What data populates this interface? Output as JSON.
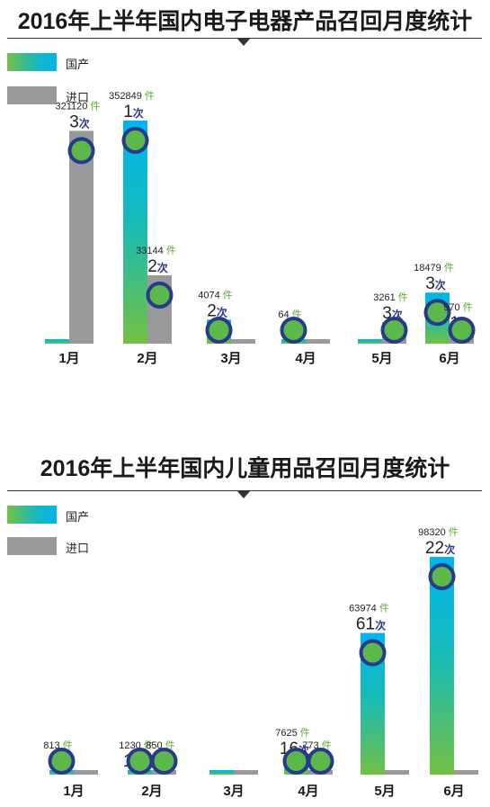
{
  "legend": {
    "domestic": "国产",
    "imported": "进口"
  },
  "colors": {
    "imported": "#97999b",
    "count_label": "#2b3a8e",
    "unit": "#5aab2e",
    "circle_ring": "#283a8c",
    "circle_fill": "#5cb84a"
  },
  "units": {
    "item": "件",
    "times": "次"
  },
  "chart_data": [
    {
      "type": "bar",
      "title": "2016年上半年国内电子电器产品召回月度统计",
      "categories": [
        "1月",
        "2月",
        "3月",
        "4月",
        "5月",
        "6月"
      ],
      "series": [
        {
          "name": "国产",
          "values": [
            0,
            352849,
            4074,
            64,
            0,
            18479
          ],
          "value_labels": [
            "",
            "352849",
            "4074",
            "64",
            "",
            "18479"
          ],
          "count_labels": [
            "",
            "1",
            "2",
            "2",
            "",
            "3"
          ]
        },
        {
          "name": "进口",
          "values": [
            321120,
            33144,
            0,
            0,
            3261,
            970
          ],
          "value_labels": [
            "321120",
            "33144",
            "",
            "",
            "3261",
            "970"
          ],
          "count_labels": [
            "3",
            "2",
            "",
            "",
            "3",
            "1"
          ]
        }
      ]
    },
    {
      "type": "bar",
      "title": "2016年上半年国内儿童用品召回月度统计",
      "categories": [
        "1月",
        "2月",
        "3月",
        "4月",
        "5月",
        "6月"
      ],
      "series": [
        {
          "name": "国产",
          "values": [
            813,
            1230,
            0,
            7625,
            63974,
            98320
          ],
          "value_labels": [
            "813",
            "1230",
            "",
            "7625",
            "63974",
            "98320"
          ],
          "count_labels": [
            "3",
            "15",
            "",
            "16",
            "61",
            "22"
          ]
        },
        {
          "name": "进口",
          "values": [
            0,
            850,
            0,
            773,
            0,
            0
          ],
          "value_labels": [
            "",
            "850",
            "",
            "773",
            "",
            ""
          ],
          "count_labels": [
            "",
            "1",
            "",
            "1",
            "",
            ""
          ]
        }
      ]
    }
  ]
}
